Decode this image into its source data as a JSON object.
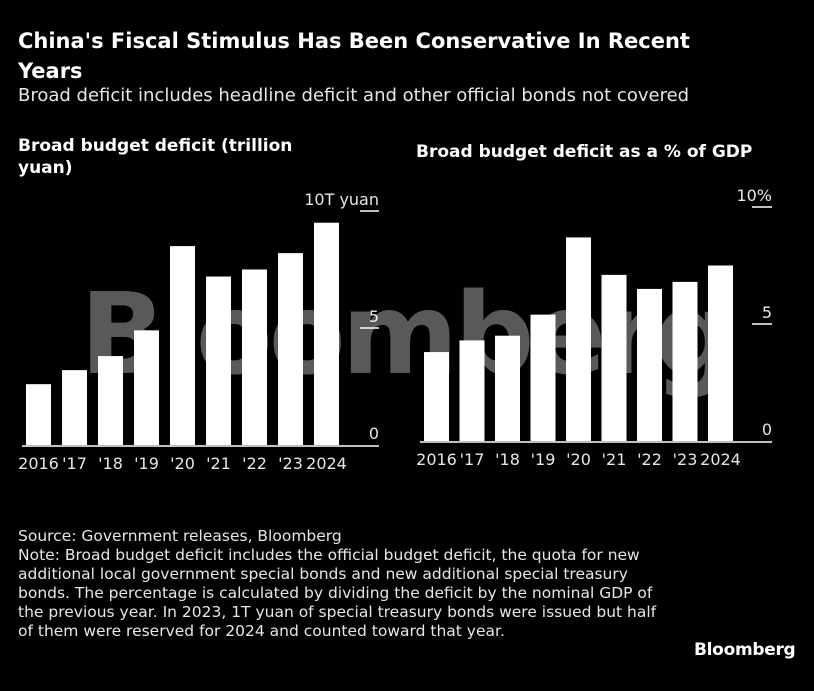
{
  "header": {
    "title": "China's Fiscal Stimulus Has Been Conservative In Recent Years",
    "subtitle": "Broad deficit includes headline deficit and other official bonds not covered"
  },
  "chart_data": [
    {
      "type": "bar",
      "title": "Broad budget deficit (trillion yuan)",
      "categories": [
        "2016",
        "'17",
        "'18",
        "'19",
        "'20",
        "'21",
        "'22",
        "'23",
        "2024"
      ],
      "values": [
        2.6,
        3.2,
        3.8,
        4.9,
        8.5,
        7.2,
        7.5,
        8.2,
        9.5
      ],
      "ylim": [
        0,
        10
      ],
      "yticks": [
        {
          "value": 0,
          "label": "0"
        },
        {
          "value": 5,
          "label": "5"
        },
        {
          "value": 10,
          "label": "10T yuan"
        }
      ],
      "xlabel": "",
      "ylabel": "",
      "grid": false
    },
    {
      "type": "bar",
      "title": "Broad budget deficit as a % of GDP",
      "categories": [
        "2016",
        "'17",
        "'18",
        "'19",
        "'20",
        "'21",
        "'22",
        "'23",
        "2024"
      ],
      "values": [
        3.8,
        4.3,
        4.5,
        5.4,
        8.7,
        7.1,
        6.5,
        6.8,
        7.5
      ],
      "ylim": [
        0,
        10
      ],
      "yticks": [
        {
          "value": 0,
          "label": "0"
        },
        {
          "value": 5,
          "label": "5"
        },
        {
          "value": 10,
          "label": "10%"
        }
      ],
      "xlabel": "",
      "ylabel": "",
      "grid": false
    }
  ],
  "footer": {
    "source": "Source: Government releases, Bloomberg",
    "note": "Note: Broad budget deficit includes the official budget deficit, the quota for new additional local government special bonds and new additional special treasury bonds. The percentage is calculated by dividing the deficit by the nominal GDP of the previous year. In 2023, 1T yuan of special treasury bonds were issued but half of them were reserved for 2024 and counted toward that year.",
    "brand": "Bloomberg",
    "watermark": "Bloomberg"
  },
  "colors": {
    "background": "#000000",
    "bar": "#ffffff",
    "text": "#e6e6e6"
  }
}
